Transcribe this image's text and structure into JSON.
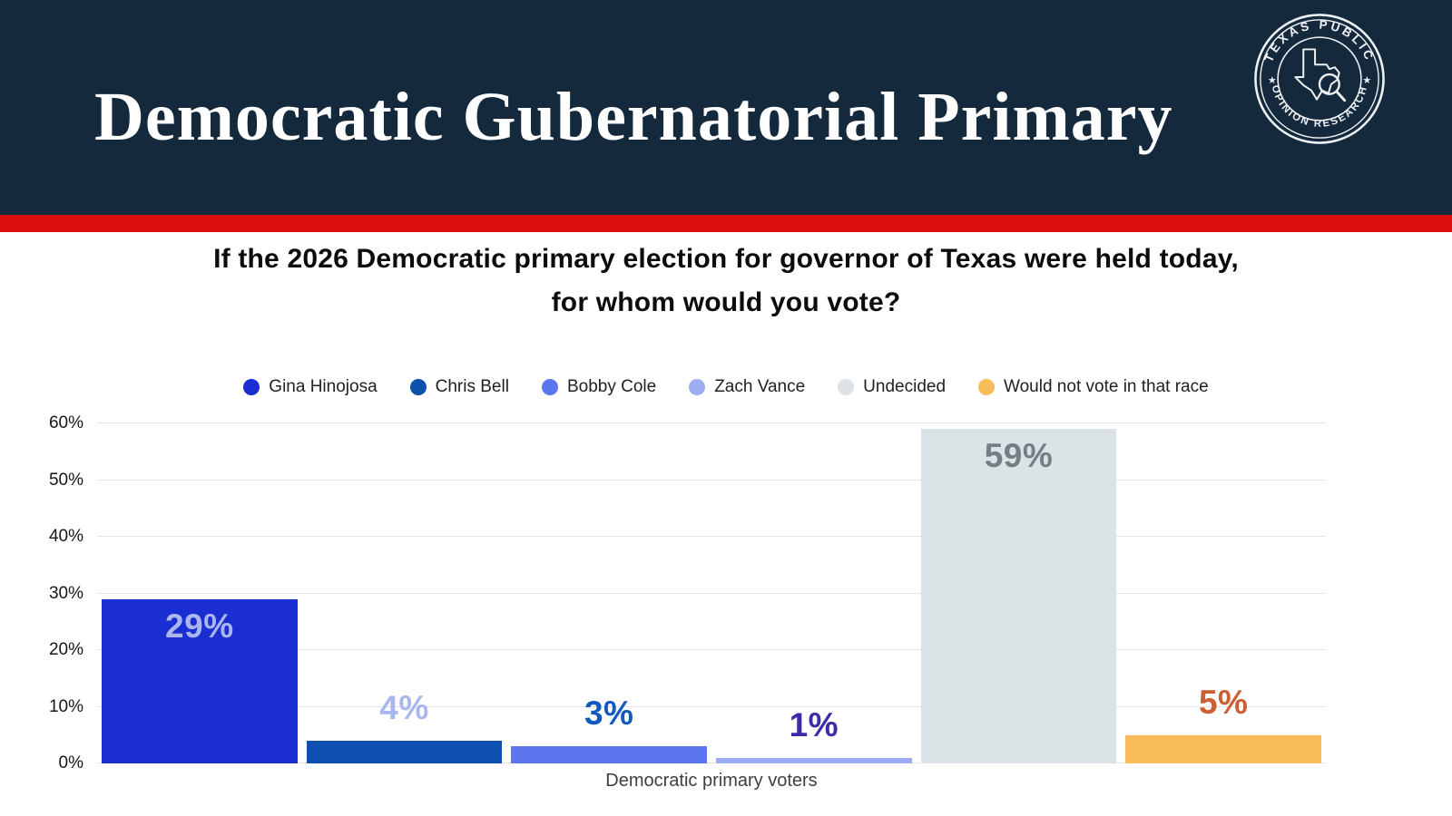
{
  "header": {
    "title": "Democratic Gubernatorial Primary",
    "bg_color": "#14293C",
    "stripe_color": "#DC0D0D",
    "logo": {
      "text_top": "TEXAS PUBLIC",
      "text_bottom": "OPINION RESEARCH",
      "star_left": "★",
      "star_right": "★"
    }
  },
  "question": {
    "line1": "If the 2026 Democratic primary election for governor of Texas were held today,",
    "line2": "for whom would you vote?"
  },
  "chart_data": {
    "type": "bar",
    "title": "",
    "categories": [
      "Gina Hinojosa",
      "Chris Bell",
      "Bobby Cole",
      "Zach Vance",
      "Undecided",
      "Would not vote in that race"
    ],
    "values": [
      29,
      4,
      3,
      1,
      59,
      5
    ],
    "value_labels": [
      "29%",
      "4%",
      "3%",
      "1%",
      "59%",
      "5%"
    ],
    "bar_colors": [
      "#1B2ED1",
      "#0D50B0",
      "#5B76EE",
      "#9DADF2",
      "#DCE3E6",
      "#F8BD5A"
    ],
    "value_label_colors": [
      "#A9B6EF",
      "#A9B6F0",
      "#1259BD",
      "#392BA9",
      "#747E84",
      "#CC5F33"
    ],
    "labels_inside_bar": [
      true,
      false,
      false,
      false,
      true,
      false
    ],
    "xlabel": "Democratic primary voters",
    "ylabel": "",
    "y_ticks": [
      "0%",
      "10%",
      "20%",
      "30%",
      "40%",
      "50%",
      "60%"
    ],
    "y_tick_values": [
      0,
      10,
      20,
      30,
      40,
      50,
      60
    ],
    "ylim": [
      0,
      60
    ],
    "grid": true,
    "legend_position": "top"
  }
}
